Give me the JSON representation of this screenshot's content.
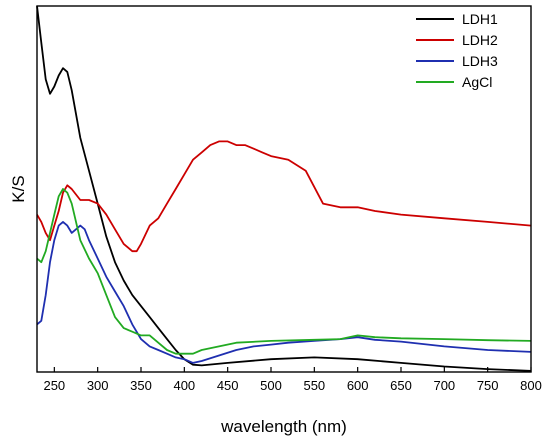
{
  "chart_data": {
    "type": "line",
    "title": "",
    "xlabel": "wavelength (nm)",
    "ylabel": "K/S",
    "xlim": [
      230,
      800
    ],
    "ylim": [
      0,
      1
    ],
    "x_ticks": [
      250,
      300,
      350,
      400,
      450,
      500,
      550,
      600,
      650,
      700,
      750,
      800
    ],
    "y_ticks_shown": false,
    "grid": false,
    "legend": "top-right",
    "series": [
      {
        "name": "LDH1",
        "color": "#000000",
        "points": [
          [
            230,
            1.0
          ],
          [
            235,
            0.9
          ],
          [
            240,
            0.8
          ],
          [
            245,
            0.76
          ],
          [
            250,
            0.78
          ],
          [
            255,
            0.81
          ],
          [
            260,
            0.83
          ],
          [
            265,
            0.82
          ],
          [
            270,
            0.77
          ],
          [
            280,
            0.64
          ],
          [
            290,
            0.55
          ],
          [
            300,
            0.46
          ],
          [
            310,
            0.37
          ],
          [
            320,
            0.3
          ],
          [
            330,
            0.25
          ],
          [
            340,
            0.21
          ],
          [
            350,
            0.18
          ],
          [
            360,
            0.15
          ],
          [
            370,
            0.12
          ],
          [
            380,
            0.09
          ],
          [
            390,
            0.06
          ],
          [
            400,
            0.035
          ],
          [
            410,
            0.02
          ],
          [
            420,
            0.018
          ],
          [
            450,
            0.025
          ],
          [
            500,
            0.035
          ],
          [
            550,
            0.04
          ],
          [
            600,
            0.035
          ],
          [
            650,
            0.025
          ],
          [
            700,
            0.015
          ],
          [
            750,
            0.008
          ],
          [
            800,
            0.003
          ]
        ]
      },
      {
        "name": "LDH2",
        "color": "#cc0000",
        "points": [
          [
            230,
            0.43
          ],
          [
            235,
            0.41
          ],
          [
            240,
            0.38
          ],
          [
            245,
            0.36
          ],
          [
            250,
            0.4
          ],
          [
            255,
            0.44
          ],
          [
            260,
            0.49
          ],
          [
            265,
            0.51
          ],
          [
            270,
            0.5
          ],
          [
            280,
            0.47
          ],
          [
            290,
            0.47
          ],
          [
            300,
            0.46
          ],
          [
            310,
            0.43
          ],
          [
            320,
            0.39
          ],
          [
            330,
            0.35
          ],
          [
            340,
            0.33
          ],
          [
            345,
            0.33
          ],
          [
            350,
            0.35
          ],
          [
            360,
            0.4
          ],
          [
            370,
            0.42
          ],
          [
            380,
            0.46
          ],
          [
            390,
            0.5
          ],
          [
            400,
            0.54
          ],
          [
            410,
            0.58
          ],
          [
            420,
            0.6
          ],
          [
            430,
            0.62
          ],
          [
            440,
            0.63
          ],
          [
            450,
            0.63
          ],
          [
            460,
            0.62
          ],
          [
            470,
            0.62
          ],
          [
            480,
            0.61
          ],
          [
            490,
            0.6
          ],
          [
            500,
            0.59
          ],
          [
            520,
            0.58
          ],
          [
            540,
            0.55
          ],
          [
            560,
            0.46
          ],
          [
            580,
            0.45
          ],
          [
            600,
            0.45
          ],
          [
            620,
            0.44
          ],
          [
            650,
            0.43
          ],
          [
            700,
            0.42
          ],
          [
            750,
            0.41
          ],
          [
            800,
            0.4
          ]
        ]
      },
      {
        "name": "LDH3",
        "color": "#1f2fb0",
        "points": [
          [
            230,
            0.13
          ],
          [
            235,
            0.14
          ],
          [
            240,
            0.21
          ],
          [
            245,
            0.3
          ],
          [
            250,
            0.36
          ],
          [
            255,
            0.4
          ],
          [
            260,
            0.41
          ],
          [
            265,
            0.4
          ],
          [
            270,
            0.38
          ],
          [
            275,
            0.39
          ],
          [
            280,
            0.4
          ],
          [
            285,
            0.39
          ],
          [
            290,
            0.36
          ],
          [
            300,
            0.31
          ],
          [
            310,
            0.26
          ],
          [
            320,
            0.22
          ],
          [
            330,
            0.18
          ],
          [
            340,
            0.13
          ],
          [
            350,
            0.09
          ],
          [
            360,
            0.07
          ],
          [
            370,
            0.06
          ],
          [
            380,
            0.05
          ],
          [
            390,
            0.04
          ],
          [
            400,
            0.035
          ],
          [
            410,
            0.025
          ],
          [
            420,
            0.03
          ],
          [
            440,
            0.045
          ],
          [
            460,
            0.06
          ],
          [
            480,
            0.07
          ],
          [
            500,
            0.075
          ],
          [
            520,
            0.08
          ],
          [
            550,
            0.085
          ],
          [
            580,
            0.09
          ],
          [
            600,
            0.095
          ],
          [
            620,
            0.088
          ],
          [
            650,
            0.083
          ],
          [
            700,
            0.07
          ],
          [
            750,
            0.06
          ],
          [
            800,
            0.055
          ]
        ]
      },
      {
        "name": "AgCl",
        "color": "#22aa22",
        "points": [
          [
            230,
            0.31
          ],
          [
            235,
            0.3
          ],
          [
            240,
            0.33
          ],
          [
            245,
            0.38
          ],
          [
            250,
            0.43
          ],
          [
            255,
            0.48
          ],
          [
            260,
            0.5
          ],
          [
            265,
            0.49
          ],
          [
            270,
            0.46
          ],
          [
            280,
            0.36
          ],
          [
            290,
            0.31
          ],
          [
            300,
            0.27
          ],
          [
            310,
            0.21
          ],
          [
            320,
            0.15
          ],
          [
            330,
            0.12
          ],
          [
            340,
            0.11
          ],
          [
            350,
            0.1
          ],
          [
            360,
            0.1
          ],
          [
            370,
            0.08
          ],
          [
            380,
            0.06
          ],
          [
            390,
            0.05
          ],
          [
            400,
            0.05
          ],
          [
            410,
            0.05
          ],
          [
            420,
            0.06
          ],
          [
            440,
            0.07
          ],
          [
            460,
            0.08
          ],
          [
            500,
            0.085
          ],
          [
            550,
            0.088
          ],
          [
            580,
            0.09
          ],
          [
            600,
            0.1
          ],
          [
            620,
            0.095
          ],
          [
            650,
            0.092
          ],
          [
            700,
            0.09
          ],
          [
            750,
            0.087
          ],
          [
            800,
            0.085
          ]
        ]
      }
    ]
  }
}
